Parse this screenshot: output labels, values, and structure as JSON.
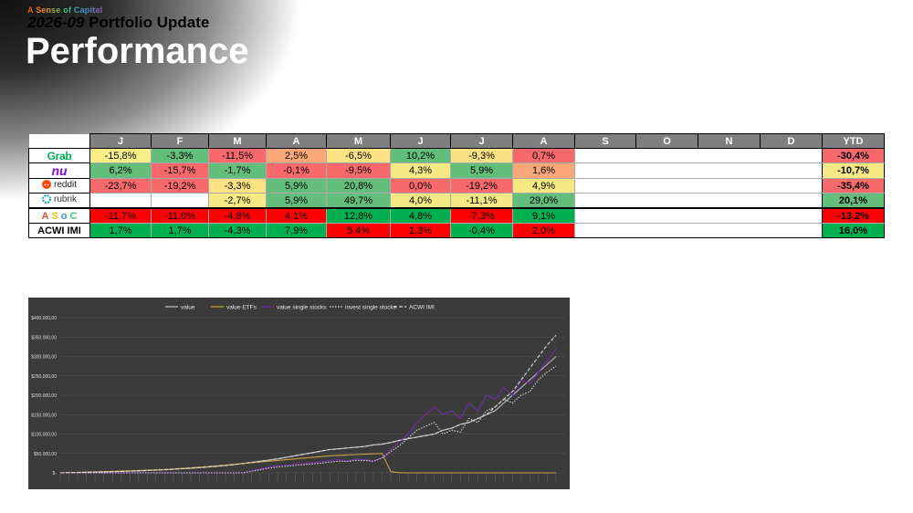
{
  "header": {
    "brand": "A Sense of Capital",
    "subtitle_year": "2026-09",
    "subtitle_text": "Portfolio Update",
    "title": "Performance"
  },
  "table": {
    "months": [
      "J",
      "F",
      "M",
      "A",
      "M",
      "J",
      "J",
      "A",
      "S",
      "O",
      "N",
      "D"
    ],
    "ytd_label": "YTD",
    "rows": [
      {
        "name": "Grab",
        "logo_text": "Grab",
        "values": [
          "-15,8%",
          "-3,3%",
          "-11,5%",
          "2,5%",
          "-6,5%",
          "10,2%",
          "-9,3%",
          "0,7%"
        ],
        "colors": [
          "#f7ee86",
          "#63be7b",
          "#f8696b",
          "#fba777",
          "#fbe283",
          "#63be7b",
          "#f9e082",
          "#f8696b"
        ],
        "ytd": "-30,4%",
        "ytd_color": "#f8696b"
      },
      {
        "name": "Nu",
        "logo_text": "nu",
        "values": [
          "6,2%",
          "-15,7%",
          "-1,7%",
          "-0,1%",
          "-9,5%",
          "4,3%",
          "5,9%",
          "1,6%"
        ],
        "colors": [
          "#63be7b",
          "#f8696b",
          "#63be7b",
          "#f8696b",
          "#f8696b",
          "#f6e984",
          "#63be7b",
          "#fba777"
        ],
        "ytd": "-10,7%",
        "ytd_color": "#f6e984"
      },
      {
        "name": "Reddit",
        "logo_text": "reddit",
        "values": [
          "-23,7%",
          "-19,2%",
          "-3,3%",
          "5,9%",
          "20,8%",
          "0,0%",
          "-19,2%",
          "4,9%"
        ],
        "colors": [
          "#f8696b",
          "#f8696b",
          "#fbe283",
          "#63be7b",
          "#63be7b",
          "#f8696b",
          "#f8696b",
          "#f6e984"
        ],
        "ytd": "-35,4%",
        "ytd_color": "#f8696b"
      },
      {
        "name": "Rubrik",
        "logo_text": "rubrik",
        "values": [
          "",
          "",
          "-2,7%",
          "5,9%",
          "49,7%",
          "4,0%",
          "-11,1%",
          "29,0%"
        ],
        "colors": [
          "#ffffff",
          "#ffffff",
          "#f6e984",
          "#63be7b",
          "#63be7b",
          "#f6e984",
          "#f6e984",
          "#63be7b"
        ],
        "ytd": "20,1%",
        "ytd_color": "#63be7b"
      },
      {
        "name": "ASoC",
        "logo_text": "ASoC",
        "values": [
          "-11,7%",
          "-11,0%",
          "-4,8%",
          "4,1%",
          "12,8%",
          "4,8%",
          "-7,3%",
          "9,1%"
        ],
        "colors": [
          "#ff0000",
          "#ff0000",
          "#ff0000",
          "#ff0000",
          "#00b050",
          "#00b050",
          "#ff0000",
          "#00b050"
        ],
        "ytd": "-13,2%",
        "ytd_color": "#ff0000"
      },
      {
        "name": "ACWI IMI",
        "logo_text": "ACWI IMI",
        "values": [
          "1,7%",
          "1,7%",
          "-4,3%",
          "7,9%",
          "5,4%",
          "1,3%",
          "-0,4%",
          "2,0%"
        ],
        "colors": [
          "#00b050",
          "#00b050",
          "#00b050",
          "#00b050",
          "#ff0000",
          "#ff0000",
          "#00b050",
          "#ff0000"
        ],
        "ytd": "16,0%",
        "ytd_color": "#00b050"
      }
    ]
  },
  "chart_data": {
    "type": "line",
    "legend_position": "top",
    "grid": true,
    "ylim": [
      0,
      400000
    ],
    "ytick_labels": [
      "$-",
      "$50.000,00",
      "$100.000,00",
      "$150.000,00",
      "$200.000,00",
      "$250.000,00",
      "$300.000,00",
      "$350.000,00",
      "$400.000,00"
    ],
    "series": [
      {
        "name": "value",
        "color": "#bfbfbf",
        "values": [
          0,
          500,
          1000,
          1500,
          2000,
          2600,
          3200,
          3800,
          4500,
          5200,
          6000,
          7000,
          8000,
          9200,
          10500,
          12000,
          13500,
          15000,
          17000,
          19000,
          21500,
          24000,
          27000,
          30000,
          33000,
          36000,
          40000,
          44000,
          48000,
          52000,
          56000,
          60000,
          62000,
          64000,
          66000,
          68000,
          72000,
          74000,
          78000,
          84000,
          88000,
          92000,
          96000,
          100000,
          110000,
          115000,
          125000,
          130000,
          140000,
          150000,
          160000,
          180000,
          200000,
          220000,
          240000,
          260000,
          280000,
          300000
        ]
      },
      {
        "name": "value ETFs",
        "color": "#c9a14a",
        "values": [
          0,
          600,
          1200,
          1800,
          2500,
          3100,
          3800,
          4500,
          5200,
          6000,
          6800,
          7800,
          8800,
          10000,
          11500,
          13000,
          14500,
          16000,
          18000,
          20000,
          22000,
          24000,
          26000,
          28000,
          30000,
          32000,
          34000,
          36000,
          38000,
          40000,
          42000,
          44000,
          45000,
          46000,
          47000,
          48000,
          49000,
          50000,
          3000,
          500,
          0,
          0,
          0,
          0,
          0,
          0,
          0,
          0,
          0,
          0,
          0,
          0,
          0,
          0,
          0,
          0,
          0,
          0
        ]
      },
      {
        "name": "value single stocks",
        "color": "#7030a0",
        "values": [
          0,
          0,
          0,
          0,
          0,
          0,
          0,
          0,
          0,
          0,
          0,
          0,
          0,
          0,
          0,
          0,
          0,
          0,
          0,
          0,
          0,
          0,
          5000,
          10000,
          15000,
          18000,
          20000,
          22000,
          24000,
          26000,
          28000,
          32000,
          34000,
          30000,
          36000,
          34000,
          30000,
          40000,
          60000,
          80000,
          100000,
          130000,
          150000,
          170000,
          150000,
          160000,
          140000,
          180000,
          160000,
          200000,
          190000,
          220000,
          200000,
          240000,
          230000,
          260000,
          290000,
          320000
        ]
      },
      {
        "name": "invest single stocks",
        "color": "#d9d9d9",
        "values": [
          0,
          0,
          0,
          0,
          0,
          0,
          0,
          0,
          0,
          0,
          0,
          0,
          0,
          0,
          0,
          0,
          0,
          0,
          0,
          0,
          0,
          0,
          4000,
          8000,
          12000,
          15000,
          17000,
          19000,
          21000,
          23000,
          25000,
          28000,
          30000,
          30000,
          32000,
          32000,
          30000,
          38000,
          55000,
          70000,
          90000,
          110000,
          120000,
          130000,
          100000,
          110000,
          105000,
          140000,
          130000,
          160000,
          170000,
          190000,
          180000,
          200000,
          210000,
          240000,
          260000,
          275000
        ]
      },
      {
        "name": "ACWI IMI",
        "color": "#d9d9d9",
        "values": [
          0,
          500,
          1000,
          1500,
          2000,
          2600,
          3200,
          3800,
          4500,
          5200,
          6000,
          7000,
          8000,
          9200,
          10500,
          12000,
          13500,
          15000,
          17000,
          19000,
          21500,
          24000,
          27000,
          30000,
          33000,
          36000,
          40000,
          44000,
          48000,
          52000,
          56000,
          60000,
          62000,
          64000,
          66000,
          68000,
          72000,
          74000,
          78000,
          84000,
          88000,
          92000,
          96000,
          100000,
          110000,
          115000,
          125000,
          130000,
          140000,
          150000,
          170000,
          190000,
          210000,
          240000,
          270000,
          300000,
          330000,
          355000
        ]
      }
    ]
  }
}
